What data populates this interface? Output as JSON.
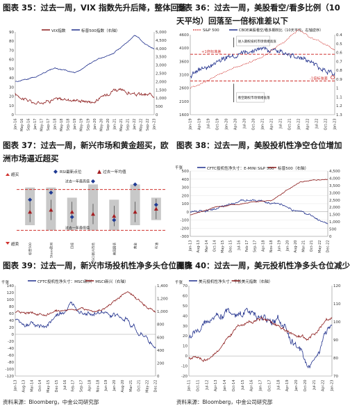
{
  "colors": {
    "navy": "#1f2f8c",
    "maroon": "#8b1a1a",
    "red": "#d0312d",
    "orange": "#e8a27a",
    "grey_band": "#c8c8c8",
    "rsi_blue": "#1f3a93",
    "avg_red": "#a41d21",
    "grid": "#e6e6e6"
  },
  "source_note": "资料来源：Bloomberg，中金公司研究部",
  "chart_data": [
    {
      "id": "c35",
      "type": "line",
      "title": "图表 35：过去一周，VIX 指数先升后降，整体回落",
      "legend": [
        "VIX指数",
        "标普500指数（右轴）"
      ],
      "x": [
        "Jan-16",
        "Jan-17",
        "Jan-18",
        "Jan-19",
        "Jan-20",
        "Jan-21",
        "Jan-22",
        "Jan-23"
      ],
      "x_ticks": [
        "Jan-16",
        "May-16",
        "Sep-16",
        "Jan-17",
        "May-17",
        "Sep-17",
        "Jan-18",
        "May-18",
        "Sep-18",
        "Jan-19",
        "May-19",
        "Sep-19",
        "Jan-20",
        "May-20",
        "Sep-20",
        "Jan-21",
        "May-21",
        "Sep-21",
        "Jan-22",
        "May-22",
        "Sep-22",
        "Jan-23"
      ],
      "y_left_ticks": [
        "0",
        "10",
        "20",
        "30",
        "40",
        "50",
        "60",
        "70",
        "80",
        "90"
      ],
      "y_right_ticks": [
        "0",
        "500",
        "1,000",
        "1,500",
        "2,000",
        "2,500",
        "3,000",
        "3,500",
        "4,000",
        "4,500",
        "5,000"
      ],
      "ylim_left": [
        0,
        90
      ],
      "ylim_right": [
        0,
        5000
      ],
      "series": [
        {
          "name": "VIX指数",
          "axis": "left",
          "color": "#8b1a1a",
          "values": [
            22,
            12,
            17,
            16,
            14,
            28,
            22,
            21
          ]
        },
        {
          "name": "标普500指数（右轴）",
          "axis": "right",
          "color": "#1f2f8c",
          "values": [
            2010,
            2280,
            2820,
            2510,
            3250,
            3750,
            4770,
            3970
          ]
        }
      ]
    },
    {
      "id": "c36",
      "type": "line",
      "title": "图表 36：过去一周，美股看空/看多比例（10 天平均）回落至一倍标准差以下",
      "legend": [
        "S&P 500",
        "CBOE美股看空/看多期权比（10天平均，右轴逆序）"
      ],
      "x": [
        "Jan-19",
        "Jan-20",
        "Jan-21",
        "Jan-22",
        "Jan-23"
      ],
      "x_ticks": [
        "Jan-19",
        "Apr-19",
        "Jul-19",
        "Oct-19",
        "Jan-20",
        "Apr-20",
        "Jul-20",
        "Oct-20",
        "Jan-21",
        "Apr-21",
        "Jul-21",
        "Oct-21",
        "Jan-22",
        "Apr-22",
        "Jul-22",
        "Oct-22",
        "Jan-23"
      ],
      "y_left_ticks": [
        "1600",
        "2100",
        "2600",
        "3100",
        "3600",
        "4100",
        "4600"
      ],
      "y_right_ticks": [
        "0.4",
        "0.5",
        "0.6",
        "0.7",
        "0.8",
        "0.9",
        "1",
        "1.1",
        "1.2",
        "1.3"
      ],
      "ylim_left": [
        1600,
        4600
      ],
      "ylim_right": [
        1.3,
        0.4
      ],
      "annotations": [
        "+1倍标准差",
        "-1倍标准差",
        "进入期权投机市场情绪高涨",
        "看空期权市场情绪低落"
      ],
      "series": [
        {
          "name": "S&P 500",
          "axis": "left",
          "color": "#d0312d",
          "values": [
            2600,
            3230,
            3760,
            4770,
            3970
          ]
        },
        {
          "name": "CBOE美股看空/看多期权比（10天平均，右轴逆序）",
          "axis": "right",
          "color": "#1f2f8c",
          "values": [
            0.85,
            0.65,
            0.55,
            0.65,
            0.85
          ]
        }
      ]
    },
    {
      "id": "c37",
      "type": "scatter",
      "title": "图表 37：过去一周，新兴市场和黄金超买，欧洲市场逼近超买",
      "legend": [
        "RSI最新点位",
        "过去一年均值"
      ],
      "labels": {
        "overbought": "超买",
        "oversold": "超卖",
        "upper_line": "过去一年最高值",
        "lower_line": "过去一年最低值"
      },
      "categories": [
        "标普500",
        "Stoxx欧洲",
        "日经",
        "MSCI新兴市场",
        "美国国债",
        "黄金",
        "布油"
      ],
      "ylim": [
        20,
        80
      ],
      "overbought": 70,
      "oversold": 30,
      "series": [
        {
          "name": "RSI最新点位",
          "values": [
            60,
            67,
            43,
            78,
            40,
            75,
            55
          ]
        },
        {
          "name": "过去一年均值",
          "values": [
            48,
            50,
            48,
            46,
            44,
            48,
            51
          ]
        }
      ]
    },
    {
      "id": "c38",
      "type": "line",
      "title": "图表 38：过去一周，美股投机性净空仓位增加",
      "unit_label": "千张",
      "legend": [
        "CFTC投机性净头寸：E-MINI S&P 500",
        "标普500（右轴）"
      ],
      "x": [
        "Jan-13",
        "Jan-15",
        "Jan-17",
        "Jan-19",
        "Jan-21",
        "Jan-23"
      ],
      "x_ticks": [
        "Jan-13",
        "Aug-13",
        "Mar-14",
        "Oct-14",
        "May-15",
        "Dec-15",
        "Jul-16",
        "Feb-17",
        "Sep-17",
        "Apr-18",
        "Nov-18",
        "Jun-19",
        "Jan-20",
        "Aug-20",
        "Mar-21",
        "Oct-21",
        "May-22",
        "Dec-22"
      ],
      "y_left_ticks": [
        "-300",
        "-200",
        "-100",
        "0",
        "100",
        "200",
        "300",
        "400",
        "500"
      ],
      "y_right_ticks": [
        "0",
        "500",
        "1,000",
        "1,500",
        "2,000",
        "2,500",
        "3,000",
        "3,500",
        "4,000",
        "4,500"
      ],
      "ylim_left": [
        -300,
        500
      ],
      "ylim_right": [
        0,
        4500
      ],
      "series": [
        {
          "name": "CFTC投机性净头寸：E-MINI S&P 500",
          "axis": "left",
          "color": "#1f2f8c",
          "values": [
            0,
            50,
            150,
            100,
            0,
            -150
          ]
        },
        {
          "name": "标普500（右轴）",
          "axis": "right",
          "color": "#8b1a1a",
          "values": [
            1450,
            2050,
            2280,
            2510,
            3750,
            3970
          ]
        }
      ]
    },
    {
      "id": "c39",
      "type": "line",
      "title": "图表 39：过去一周，新兴市场投机性净多头仓位骤降",
      "unit_label": "千张",
      "legend": [
        "CFTC投机性净头寸：MSCI新兴",
        "MSCI新兴（右轴）"
      ],
      "x": [
        "Jan-13",
        "Jan-15",
        "Jan-17",
        "Jan-19",
        "Jan-21",
        "Jan-23"
      ],
      "x_ticks": [
        "Jan-13",
        "Aug-13",
        "Mar-14",
        "Oct-14",
        "May-15",
        "Dec-15",
        "Jul-16",
        "Feb-17",
        "Sep-17",
        "Apr-18",
        "Nov-18",
        "Jun-19",
        "Jan-20",
        "Aug-20",
        "Mar-21",
        "Oct-21",
        "May-22",
        "Dec-22"
      ],
      "y_left_ticks": [
        "-120",
        "-100",
        "-80",
        "-60",
        "-40",
        "-20",
        "0",
        "20",
        "40",
        "60",
        "80",
        "100",
        "120",
        "140"
      ],
      "y_right_ticks": [
        "0",
        "200",
        "400",
        "600",
        "800",
        "1,000",
        "1,200",
        "1,400"
      ],
      "ylim_left": [
        -120,
        140
      ],
      "ylim_right": [
        0,
        1400
      ],
      "series": [
        {
          "name": "CFTC投机性净头寸：MSCI新兴",
          "axis": "left",
          "color": "#1f2f8c",
          "values": [
            40,
            20,
            80,
            60,
            40,
            -40
          ]
        },
        {
          "name": "MSCI新兴（右轴）",
          "axis": "right",
          "color": "#8b1a1a",
          "values": [
            1000,
            950,
            1050,
            1000,
            1300,
            1000
          ]
        }
      ]
    },
    {
      "id": "c40",
      "type": "line",
      "title": "图表 40：过去一周，美元投机性净多头仓位减少",
      "unit_label": "千张",
      "legend": [
        "美元投机性净头寸，千张",
        "美元指数（右轴）"
      ],
      "x": [
        "Jan-11",
        "Jan-13",
        "Jan-15",
        "Jan-17",
        "Jan-19",
        "Jan-21",
        "Jan-23"
      ],
      "x_ticks": [
        "Jan-11",
        "Oct-11",
        "Jul-12",
        "Apr-13",
        "Jan-14",
        "Oct-14",
        "Jul-15",
        "Apr-16",
        "Jan-17",
        "Oct-17",
        "Jul-18",
        "Apr-19",
        "Jan-20",
        "Oct-20",
        "Jul-21",
        "Apr-22",
        "Jan-23"
      ],
      "y_left_ticks": [
        "-20",
        "-10",
        "0",
        "10",
        "20",
        "30",
        "40",
        "50",
        "60",
        "70"
      ],
      "y_right_ticks": [
        "70",
        "80",
        "90",
        "100",
        "110",
        "120"
      ],
      "ylim_left": [
        -20,
        70
      ],
      "ylim_right": [
        70,
        120
      ],
      "series": [
        {
          "name": "美元投机性净头寸，千张",
          "axis": "left",
          "color": "#1f2f8c",
          "values": [
            20,
            40,
            45,
            40,
            30,
            -10,
            30
          ]
        },
        {
          "name": "美元指数（右轴）",
          "axis": "right",
          "color": "#8b1a1a",
          "values": [
            80,
            80,
            97,
            102,
            96,
            90,
            103
          ]
        }
      ]
    }
  ]
}
